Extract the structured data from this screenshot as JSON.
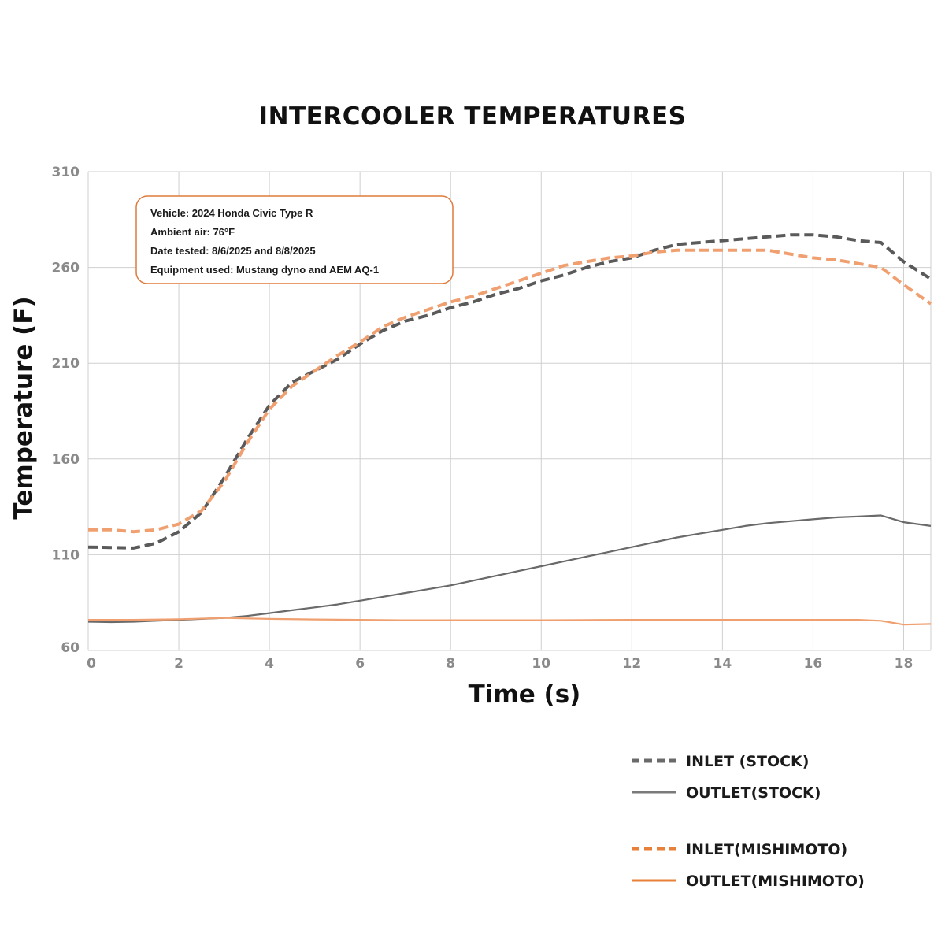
{
  "chart_data": {
    "type": "line",
    "title": "INTERCOOLER TEMPERATURES",
    "xlabel": "Time (s)",
    "ylabel": "Temperature (F)",
    "xlim": [
      0,
      18.6
    ],
    "ylim": [
      60,
      310
    ],
    "x_ticks": [
      "0",
      "2",
      "4",
      "6",
      "8",
      "10",
      "12",
      "14",
      "16",
      "18"
    ],
    "y_ticks": [
      "60",
      "110",
      "160",
      "210",
      "260",
      "310"
    ],
    "grid": true,
    "legend_position": "bottom-right",
    "annotation": {
      "lines": [
        "Vehicle: 2024 Honda Civic Type R",
        "Ambient air: 76°F",
        "Date tested: 8/6/2025 and 8/8/2025",
        "Equipment used: Mustang dyno and AEM AQ-1"
      ],
      "border_color": "#e07a3a"
    },
    "series": [
      {
        "name": "INLET (STOCK)",
        "color": "#5a5a5a",
        "style": "dashed",
        "points": [
          [
            0,
            114
          ],
          [
            0.5,
            113.8
          ],
          [
            1,
            113.5
          ],
          [
            1.5,
            116
          ],
          [
            2,
            122
          ],
          [
            2.5,
            132
          ],
          [
            3,
            150
          ],
          [
            3.5,
            170
          ],
          [
            4,
            188
          ],
          [
            4.5,
            200
          ],
          [
            5,
            206
          ],
          [
            5.5,
            212
          ],
          [
            6,
            220
          ],
          [
            6.5,
            227
          ],
          [
            7,
            232
          ],
          [
            7.5,
            235
          ],
          [
            8,
            239
          ],
          [
            8.5,
            242
          ],
          [
            9,
            246
          ],
          [
            9.5,
            249
          ],
          [
            10,
            253
          ],
          [
            10.5,
            256
          ],
          [
            11,
            260
          ],
          [
            11.5,
            263
          ],
          [
            12,
            265
          ],
          [
            12.5,
            269
          ],
          [
            13,
            272
          ],
          [
            13.5,
            273
          ],
          [
            14,
            274
          ],
          [
            14.5,
            275
          ],
          [
            15,
            276
          ],
          [
            15.5,
            277
          ],
          [
            16,
            277
          ],
          [
            16.5,
            276
          ],
          [
            17,
            274
          ],
          [
            17.5,
            273
          ],
          [
            18,
            263
          ],
          [
            18.6,
            254
          ]
        ]
      },
      {
        "name": "OUTLET(STOCK)",
        "color": "#6a6a6a",
        "style": "solid",
        "points": [
          [
            0,
            75
          ],
          [
            0.5,
            74.8
          ],
          [
            1,
            75
          ],
          [
            1.5,
            75.5
          ],
          [
            2,
            76
          ],
          [
            2.5,
            76.5
          ],
          [
            3,
            77
          ],
          [
            3.5,
            78
          ],
          [
            4,
            79.5
          ],
          [
            4.5,
            81
          ],
          [
            5,
            82.5
          ],
          [
            5.5,
            84
          ],
          [
            6,
            86
          ],
          [
            6.5,
            88
          ],
          [
            7,
            90
          ],
          [
            7.5,
            92
          ],
          [
            8,
            94
          ],
          [
            8.5,
            96.5
          ],
          [
            9,
            99
          ],
          [
            9.5,
            101.5
          ],
          [
            10,
            104
          ],
          [
            10.5,
            106.5
          ],
          [
            11,
            109
          ],
          [
            11.5,
            111.5
          ],
          [
            12,
            114
          ],
          [
            12.5,
            116.5
          ],
          [
            13,
            119
          ],
          [
            13.5,
            121
          ],
          [
            14,
            123
          ],
          [
            14.5,
            125
          ],
          [
            15,
            126.5
          ],
          [
            15.5,
            127.5
          ],
          [
            16,
            128.5
          ],
          [
            16.5,
            129.5
          ],
          [
            17,
            130
          ],
          [
            17.5,
            130.5
          ],
          [
            18,
            127
          ],
          [
            18.6,
            125
          ]
        ]
      },
      {
        "name": "INLET(MISHIMOTO)",
        "color": "#f0a070",
        "style": "dashed",
        "points": [
          [
            0,
            123
          ],
          [
            0.5,
            123
          ],
          [
            1,
            122
          ],
          [
            1.5,
            123
          ],
          [
            2,
            126
          ],
          [
            2.5,
            133
          ],
          [
            3,
            148
          ],
          [
            3.5,
            168
          ],
          [
            4,
            186
          ],
          [
            4.5,
            198
          ],
          [
            5,
            206
          ],
          [
            5.5,
            214
          ],
          [
            6,
            221
          ],
          [
            6.5,
            229
          ],
          [
            7,
            234
          ],
          [
            7.5,
            238
          ],
          [
            8,
            242
          ],
          [
            8.5,
            245
          ],
          [
            9,
            249
          ],
          [
            9.5,
            253
          ],
          [
            10,
            257
          ],
          [
            10.5,
            261
          ],
          [
            11,
            263
          ],
          [
            11.5,
            265
          ],
          [
            12,
            266
          ],
          [
            12.5,
            268
          ],
          [
            13,
            269
          ],
          [
            13.5,
            269
          ],
          [
            14,
            269
          ],
          [
            14.5,
            269
          ],
          [
            15,
            269
          ],
          [
            15.5,
            267
          ],
          [
            16,
            265
          ],
          [
            16.5,
            264
          ],
          [
            17,
            262
          ],
          [
            17.5,
            260
          ],
          [
            18,
            251
          ],
          [
            18.6,
            241
          ]
        ]
      },
      {
        "name": "OUTLET(MISHIMOTO)",
        "color": "#f0a070",
        "style": "solid",
        "points": [
          [
            0,
            76
          ],
          [
            1,
            76
          ],
          [
            2,
            76.3
          ],
          [
            3,
            77
          ],
          [
            4,
            76.5
          ],
          [
            5,
            76.2
          ],
          [
            6,
            76
          ],
          [
            7,
            75.8
          ],
          [
            8,
            75.8
          ],
          [
            9,
            75.8
          ],
          [
            10,
            75.8
          ],
          [
            11,
            75.9
          ],
          [
            12,
            76
          ],
          [
            13,
            76
          ],
          [
            14,
            76
          ],
          [
            15,
            76
          ],
          [
            16,
            76
          ],
          [
            17,
            76
          ],
          [
            17.5,
            75.5
          ],
          [
            18,
            73.5
          ],
          [
            18.6,
            73.8
          ]
        ]
      }
    ]
  }
}
